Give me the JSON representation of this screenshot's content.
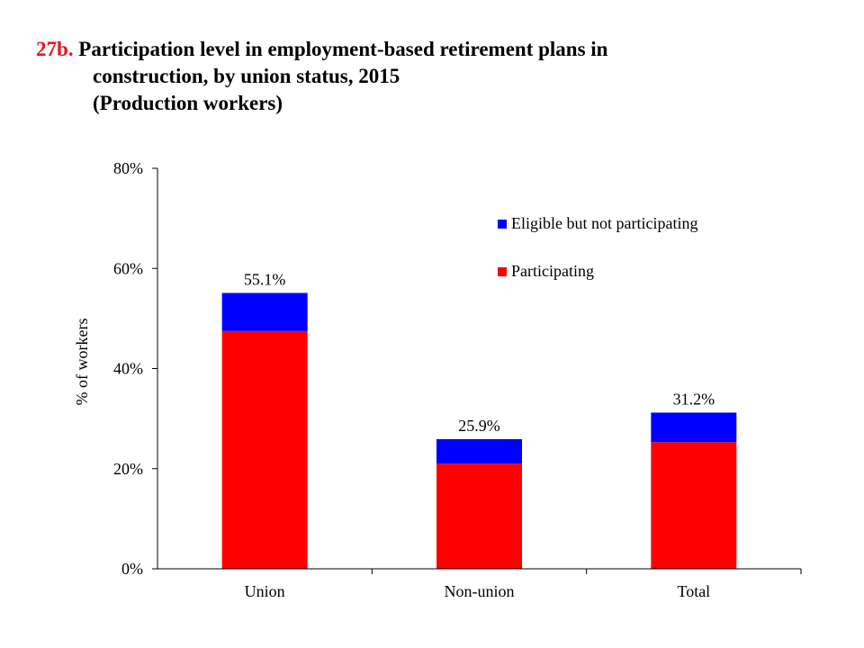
{
  "title": {
    "number": "27b.",
    "line1": "Participation level in employment-based retirement plans in",
    "line2": "construction, by union status, 2015",
    "line3": "(Production workers)"
  },
  "chart_data": {
    "type": "bar",
    "stacked": true,
    "categories": [
      "Union",
      "Non-union",
      "Total"
    ],
    "series": [
      {
        "name": "Participating",
        "color": "#ff0000",
        "values": [
          47.5,
          21.0,
          25.3
        ]
      },
      {
        "name": "Eligible but not participating",
        "color": "#0000ff",
        "values": [
          7.6,
          4.9,
          5.9
        ]
      }
    ],
    "totals": [
      55.1,
      25.9,
      31.2
    ],
    "total_labels": [
      "55.1%",
      "25.9%",
      "31.2%"
    ],
    "ylabel": "% of workers",
    "xlabel": "",
    "ylim": [
      0,
      80
    ],
    "yticks": [
      0,
      20,
      40,
      60,
      80
    ],
    "ytick_labels": [
      "0%",
      "20%",
      "40%",
      "60%",
      "80%"
    ],
    "legend": [
      {
        "label": "Eligible but not participating",
        "color": "#0000ff"
      },
      {
        "label": "Participating",
        "color": "#ff0000"
      }
    ],
    "legend_position": "top-right",
    "grid": false
  }
}
